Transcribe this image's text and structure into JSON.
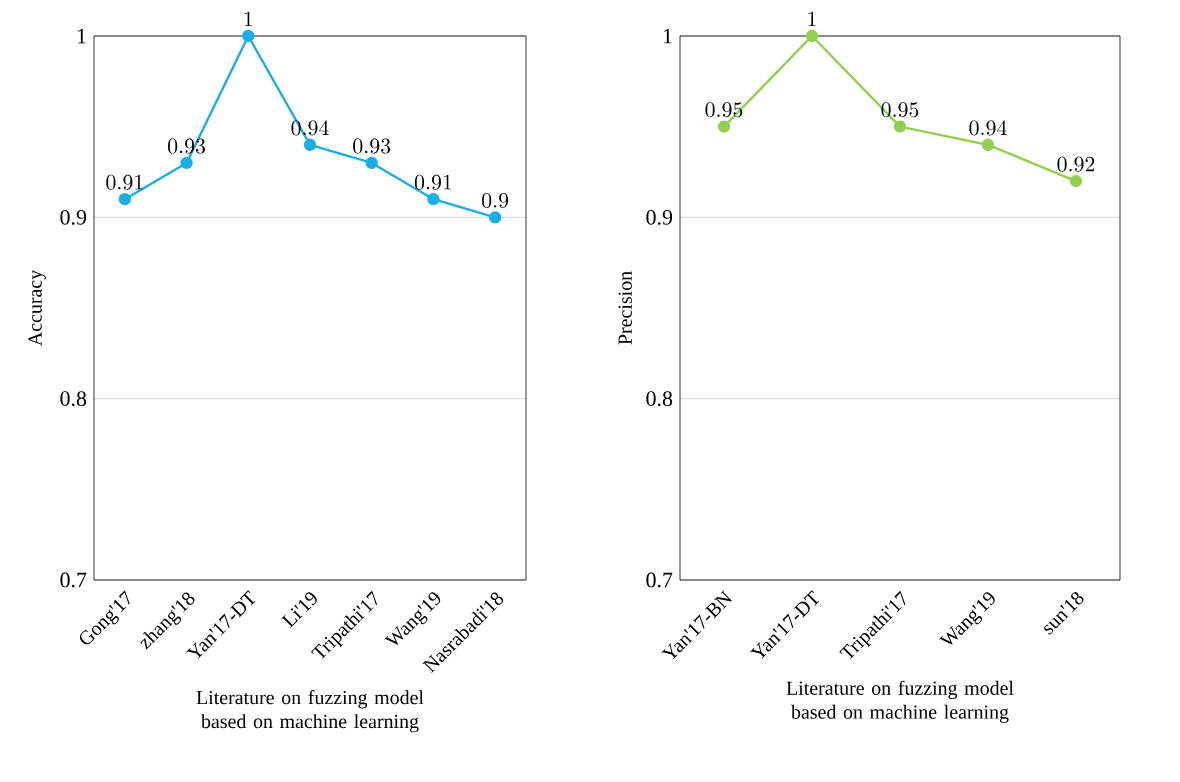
{
  "chart_data": [
    {
      "type": "line",
      "ylabel": "Accuracy",
      "xlabel": "Literature on fuzzing model based on machine learning",
      "categories": [
        "Gong'17",
        "zhang'18",
        "Yan'17-DT",
        "Li'19",
        "Tripathi'17",
        "Wang'19",
        "Nasrabadi'18"
      ],
      "values": [
        0.91,
        0.93,
        1,
        0.94,
        0.93,
        0.91,
        0.9
      ],
      "color": "#1aaee5",
      "ylim": [
        0.7,
        1
      ],
      "yticks": [
        0.7,
        0.8,
        0.9,
        1
      ],
      "grid": "y",
      "marker": "circle",
      "data_labels": true
    },
    {
      "type": "line",
      "ylabel": "Precision",
      "xlabel": "Literature on fuzzing model based on machine learning",
      "categories": [
        "Yan'17-BN",
        "Yan'17-DT",
        "Tripathi'17",
        "Wang'19",
        "sun'18"
      ],
      "values": [
        0.95,
        1,
        0.95,
        0.94,
        0.92
      ],
      "color": "#92d050",
      "ylim": [
        0.7,
        1
      ],
      "yticks": [
        0.7,
        0.8,
        0.9,
        1
      ],
      "grid": "y",
      "marker": "circle",
      "data_labels": true
    }
  ]
}
